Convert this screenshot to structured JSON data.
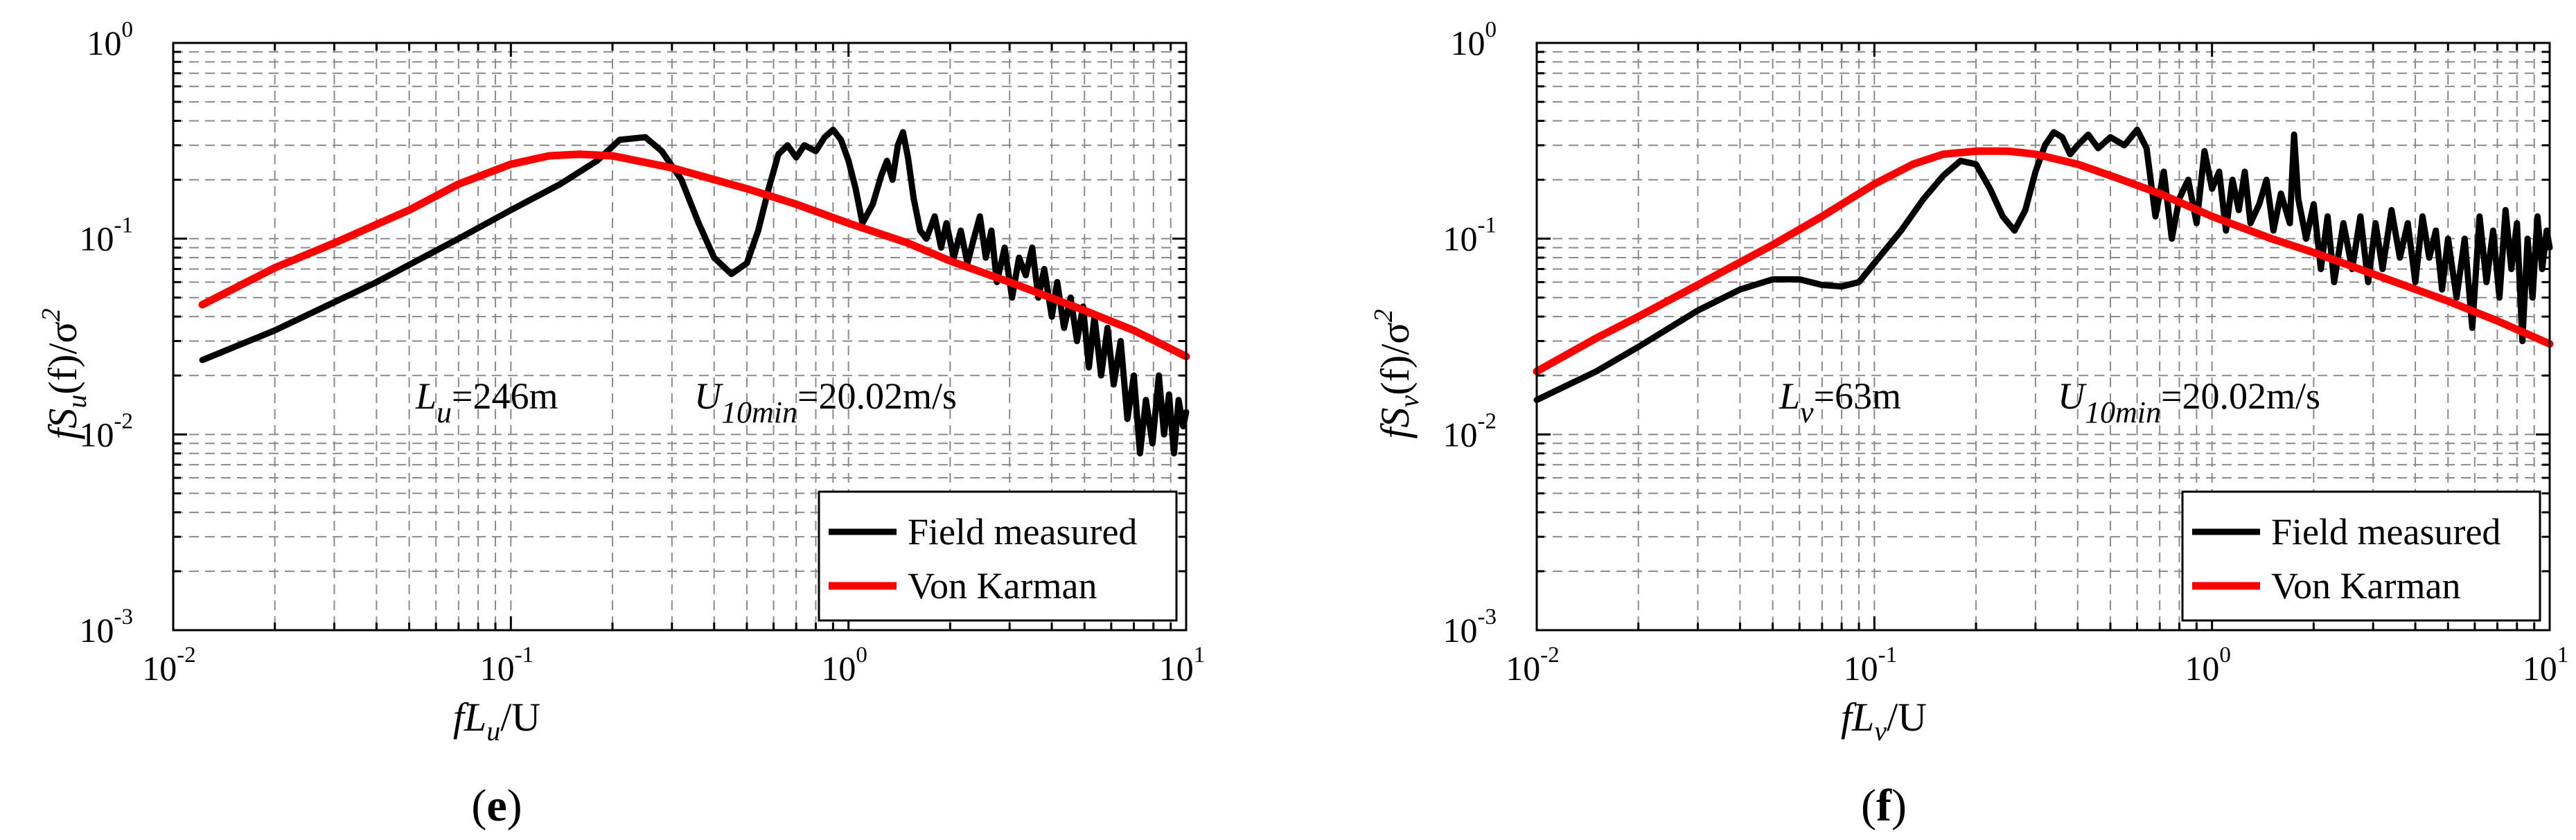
{
  "chart_data": [
    {
      "type": "line",
      "panel": "e",
      "caption_open": "(",
      "caption_letter": "e",
      "caption_close": ")",
      "xscale": "log",
      "yscale": "log",
      "xlim": [
        0.01,
        10
      ],
      "ylim": [
        0.001,
        1
      ],
      "x_ticks": [
        {
          "base": "10",
          "exp": "-2"
        },
        {
          "base": "10",
          "exp": "-1"
        },
        {
          "base": "10",
          "exp": "0"
        },
        {
          "base": "10",
          "exp": "1"
        }
      ],
      "y_ticks": [
        {
          "base": "10",
          "exp": "-3"
        },
        {
          "base": "10",
          "exp": "-2"
        },
        {
          "base": "10",
          "exp": "-1"
        },
        {
          "base": "10",
          "exp": "0"
        }
      ],
      "xlabel": {
        "a": "fL",
        "sub": "u",
        "b": "/U"
      },
      "ylabel": {
        "a": "fS",
        "sub": "u",
        "b": "(f)/σ",
        "sup": "2"
      },
      "grid": true,
      "annotation_L": {
        "main": "L",
        "sub": "u",
        "rest": "=246m"
      },
      "annotation_U": {
        "main": "U",
        "sub": "10min",
        "rest": "=20.02m/s"
      },
      "legend": [
        "Field measured",
        "Von Karman"
      ],
      "legend_position": "lower-right",
      "series": [
        {
          "name": "Field measured",
          "color": "#000000",
          "points": [
            [
              0.0122,
              0.024
            ],
            [
              0.02,
              0.034
            ],
            [
              0.04,
              0.06
            ],
            [
              0.07,
              0.1
            ],
            [
              0.1,
              0.14
            ],
            [
              0.14,
              0.19
            ],
            [
              0.18,
              0.25
            ],
            [
              0.21,
              0.32
            ],
            [
              0.25,
              0.33
            ],
            [
              0.28,
              0.28
            ],
            [
              0.32,
              0.2
            ],
            [
              0.36,
              0.12
            ],
            [
              0.4,
              0.08
            ],
            [
              0.45,
              0.066
            ],
            [
              0.5,
              0.075
            ],
            [
              0.54,
              0.11
            ],
            [
              0.58,
              0.18
            ],
            [
              0.62,
              0.27
            ],
            [
              0.66,
              0.3
            ],
            [
              0.7,
              0.26
            ],
            [
              0.74,
              0.3
            ],
            [
              0.8,
              0.28
            ],
            [
              0.85,
              0.33
            ],
            [
              0.9,
              0.36
            ],
            [
              0.95,
              0.32
            ],
            [
              1.0,
              0.25
            ],
            [
              1.05,
              0.18
            ],
            [
              1.1,
              0.12
            ],
            [
              1.18,
              0.15
            ],
            [
              1.25,
              0.21
            ],
            [
              1.3,
              0.25
            ],
            [
              1.35,
              0.2
            ],
            [
              1.4,
              0.3
            ],
            [
              1.45,
              0.35
            ],
            [
              1.5,
              0.26
            ],
            [
              1.56,
              0.16
            ],
            [
              1.63,
              0.11
            ],
            [
              1.7,
              0.1
            ],
            [
              1.8,
              0.13
            ],
            [
              1.88,
              0.09
            ],
            [
              1.95,
              0.12
            ],
            [
              2.05,
              0.08
            ],
            [
              2.15,
              0.11
            ],
            [
              2.25,
              0.075
            ],
            [
              2.35,
              0.1
            ],
            [
              2.45,
              0.13
            ],
            [
              2.55,
              0.08
            ],
            [
              2.65,
              0.11
            ],
            [
              2.75,
              0.06
            ],
            [
              2.9,
              0.09
            ],
            [
              3.05,
              0.05
            ],
            [
              3.2,
              0.08
            ],
            [
              3.35,
              0.065
            ],
            [
              3.5,
              0.09
            ],
            [
              3.65,
              0.05
            ],
            [
              3.8,
              0.07
            ],
            [
              4.0,
              0.04
            ],
            [
              4.15,
              0.06
            ],
            [
              4.35,
              0.035
            ],
            [
              4.55,
              0.05
            ],
            [
              4.75,
              0.03
            ],
            [
              4.95,
              0.045
            ],
            [
              5.15,
              0.022
            ],
            [
              5.35,
              0.04
            ],
            [
              5.6,
              0.02
            ],
            [
              5.85,
              0.035
            ],
            [
              6.1,
              0.018
            ],
            [
              6.4,
              0.03
            ],
            [
              6.7,
              0.012
            ],
            [
              7.0,
              0.02
            ],
            [
              7.3,
              0.008
            ],
            [
              7.6,
              0.015
            ],
            [
              7.95,
              0.009
            ],
            [
              8.3,
              0.02
            ],
            [
              8.6,
              0.01
            ],
            [
              8.9,
              0.016
            ],
            [
              9.2,
              0.008
            ],
            [
              9.5,
              0.015
            ],
            [
              9.8,
              0.011
            ],
            [
              10.0,
              0.013
            ]
          ]
        },
        {
          "name": "Von Karman",
          "color": "#ff0000",
          "points": [
            [
              0.0122,
              0.046
            ],
            [
              0.02,
              0.071
            ],
            [
              0.03,
              0.095
            ],
            [
              0.05,
              0.14
            ],
            [
              0.07,
              0.19
            ],
            [
              0.1,
              0.24
            ],
            [
              0.13,
              0.265
            ],
            [
              0.16,
              0.27
            ],
            [
              0.2,
              0.265
            ],
            [
              0.3,
              0.23
            ],
            [
              0.5,
              0.18
            ],
            [
              0.7,
              0.15
            ],
            [
              1.0,
              0.12
            ],
            [
              1.5,
              0.095
            ],
            [
              2.0,
              0.077
            ],
            [
              3.0,
              0.06
            ],
            [
              5.0,
              0.043
            ],
            [
              7.0,
              0.034
            ],
            [
              10.0,
              0.025
            ]
          ]
        }
      ]
    },
    {
      "type": "line",
      "panel": "f",
      "caption_open": "(",
      "caption_letter": "f",
      "caption_close": ")",
      "xscale": "log",
      "yscale": "log",
      "xlim": [
        0.01,
        10
      ],
      "ylim": [
        0.001,
        1
      ],
      "x_ticks": [
        {
          "base": "10",
          "exp": "-2"
        },
        {
          "base": "10",
          "exp": "-1"
        },
        {
          "base": "10",
          "exp": "0"
        },
        {
          "base": "10",
          "exp": "1"
        }
      ],
      "y_ticks": [
        {
          "base": "10",
          "exp": "-3"
        },
        {
          "base": "10",
          "exp": "-2"
        },
        {
          "base": "10",
          "exp": "-1"
        },
        {
          "base": "10",
          "exp": "0"
        }
      ],
      "xlabel": {
        "a": "fL",
        "sub": "v",
        "b": "/U"
      },
      "ylabel": {
        "a": "fS",
        "sub": "v",
        "b": "(f)/σ",
        "sup": "2"
      },
      "grid": true,
      "annotation_L": {
        "main": "L",
        "sub": "v",
        "rest": "=63m"
      },
      "annotation_U": {
        "main": "U",
        "sub": "10min",
        "rest": "=20.02m/s"
      },
      "legend": [
        "Field measured",
        "Von Karman"
      ],
      "legend_position": "lower-right",
      "series": [
        {
          "name": "Field measured",
          "color": "#000000",
          "points": [
            [
              0.01,
              0.015
            ],
            [
              0.015,
              0.021
            ],
            [
              0.02,
              0.028
            ],
            [
              0.03,
              0.043
            ],
            [
              0.04,
              0.055
            ],
            [
              0.05,
              0.062
            ],
            [
              0.06,
              0.062
            ],
            [
              0.07,
              0.058
            ],
            [
              0.08,
              0.057
            ],
            [
              0.09,
              0.06
            ],
            [
              0.1,
              0.075
            ],
            [
              0.12,
              0.11
            ],
            [
              0.14,
              0.16
            ],
            [
              0.16,
              0.21
            ],
            [
              0.18,
              0.25
            ],
            [
              0.2,
              0.24
            ],
            [
              0.22,
              0.18
            ],
            [
              0.24,
              0.13
            ],
            [
              0.26,
              0.11
            ],
            [
              0.28,
              0.14
            ],
            [
              0.3,
              0.22
            ],
            [
              0.32,
              0.3
            ],
            [
              0.34,
              0.35
            ],
            [
              0.36,
              0.33
            ],
            [
              0.38,
              0.27
            ],
            [
              0.4,
              0.3
            ],
            [
              0.43,
              0.34
            ],
            [
              0.46,
              0.29
            ],
            [
              0.5,
              0.33
            ],
            [
              0.55,
              0.3
            ],
            [
              0.6,
              0.36
            ],
            [
              0.64,
              0.29
            ],
            [
              0.68,
              0.13
            ],
            [
              0.72,
              0.22
            ],
            [
              0.76,
              0.1
            ],
            [
              0.8,
              0.16
            ],
            [
              0.85,
              0.2
            ],
            [
              0.9,
              0.12
            ],
            [
              0.95,
              0.28
            ],
            [
              1.0,
              0.18
            ],
            [
              1.05,
              0.22
            ],
            [
              1.1,
              0.11
            ],
            [
              1.15,
              0.2
            ],
            [
              1.2,
              0.14
            ],
            [
              1.25,
              0.22
            ],
            [
              1.3,
              0.12
            ],
            [
              1.38,
              0.15
            ],
            [
              1.45,
              0.2
            ],
            [
              1.52,
              0.11
            ],
            [
              1.6,
              0.17
            ],
            [
              1.7,
              0.12
            ],
            [
              1.75,
              0.34
            ],
            [
              1.8,
              0.16
            ],
            [
              1.9,
              0.1
            ],
            [
              2.0,
              0.15
            ],
            [
              2.1,
              0.07
            ],
            [
              2.2,
              0.13
            ],
            [
              2.3,
              0.06
            ],
            [
              2.45,
              0.12
            ],
            [
              2.6,
              0.07
            ],
            [
              2.75,
              0.13
            ],
            [
              2.9,
              0.06
            ],
            [
              3.05,
              0.12
            ],
            [
              3.2,
              0.07
            ],
            [
              3.4,
              0.14
            ],
            [
              3.6,
              0.08
            ],
            [
              3.8,
              0.12
            ],
            [
              4.0,
              0.06
            ],
            [
              4.2,
              0.13
            ],
            [
              4.4,
              0.08
            ],
            [
              4.6,
              0.11
            ],
            [
              4.8,
              0.055
            ],
            [
              5.0,
              0.1
            ],
            [
              5.3,
              0.05
            ],
            [
              5.6,
              0.1
            ],
            [
              5.9,
              0.035
            ],
            [
              6.2,
              0.13
            ],
            [
              6.5,
              0.06
            ],
            [
              6.8,
              0.11
            ],
            [
              7.1,
              0.05
            ],
            [
              7.4,
              0.14
            ],
            [
              7.7,
              0.07
            ],
            [
              8.0,
              0.12
            ],
            [
              8.3,
              0.03
            ],
            [
              8.6,
              0.1
            ],
            [
              8.9,
              0.05
            ],
            [
              9.2,
              0.13
            ],
            [
              9.5,
              0.07
            ],
            [
              9.8,
              0.11
            ],
            [
              10.0,
              0.09
            ]
          ]
        },
        {
          "name": "Von Karman",
          "color": "#ff0000",
          "points": [
            [
              0.01,
              0.021
            ],
            [
              0.015,
              0.031
            ],
            [
              0.02,
              0.04
            ],
            [
              0.03,
              0.058
            ],
            [
              0.05,
              0.093
            ],
            [
              0.07,
              0.13
            ],
            [
              0.1,
              0.19
            ],
            [
              0.13,
              0.24
            ],
            [
              0.16,
              0.27
            ],
            [
              0.2,
              0.28
            ],
            [
              0.25,
              0.28
            ],
            [
              0.3,
              0.27
            ],
            [
              0.4,
              0.24
            ],
            [
              0.5,
              0.21
            ],
            [
              0.7,
              0.17
            ],
            [
              1.0,
              0.13
            ],
            [
              1.5,
              0.1
            ],
            [
              2.0,
              0.085
            ],
            [
              3.0,
              0.066
            ],
            [
              5.0,
              0.048
            ],
            [
              7.0,
              0.038
            ],
            [
              10.0,
              0.029
            ]
          ]
        }
      ]
    }
  ]
}
